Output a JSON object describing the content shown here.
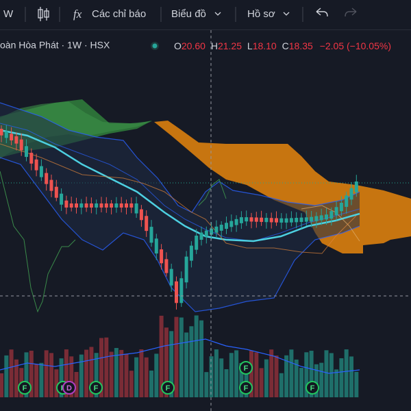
{
  "toolbar": {
    "interval": "W",
    "indicators": "Các chỉ báo",
    "chart": "Biểu đồ",
    "profile": "Hồ sơ"
  },
  "legend": {
    "symbol": "oàn Hòa Phát · 1W · HSX",
    "open_label": "O",
    "open": "20.60",
    "high_label": "H",
    "high": "21.25",
    "low_label": "L",
    "low": "18.10",
    "close_label": "C",
    "close": "18.35",
    "change": "−2.05 (−10.05%)"
  },
  "events": [
    "F",
    "F",
    "D",
    "F",
    "F",
    "F",
    "F",
    "F"
  ]
}
